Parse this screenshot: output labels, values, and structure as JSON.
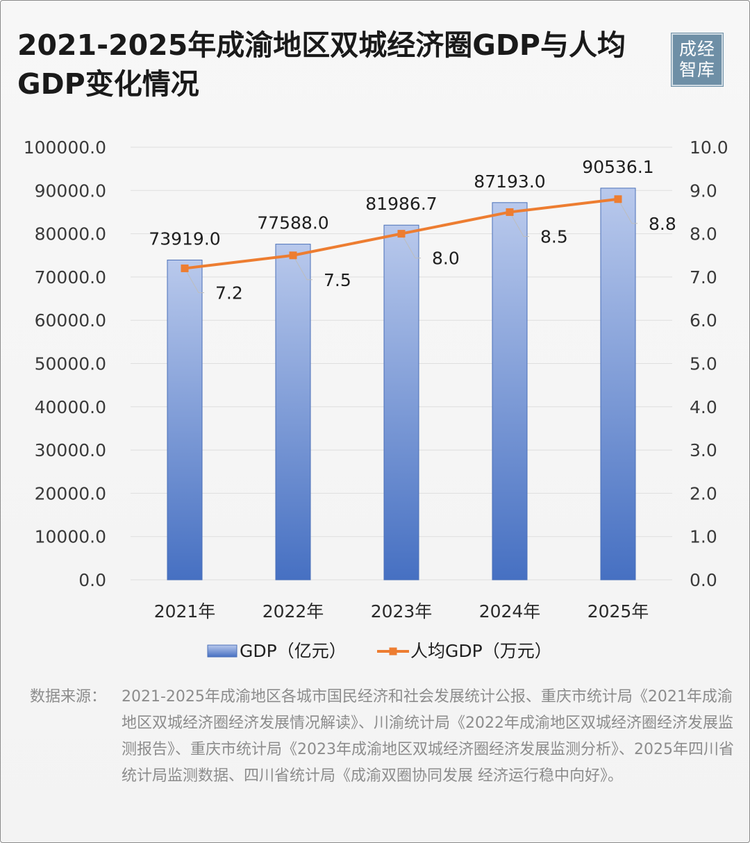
{
  "title": "2021-2025年成渝地区双城经济圈GDP与人均GDP变化情况",
  "logo": {
    "line1": "成经",
    "line2": "智库"
  },
  "source": {
    "label": "数据来源：",
    "text": "2021-2025年成渝地区各城市国民经济和社会发展统计公报、重庆市统计局《2021年成渝地区双城经济圈经济发展情况解读》、川渝统计局《2022年成渝地区双城经济圈经济发展监测报告》、重庆市统计局《2023年成渝地区双城经济圈经济发展监测分析》、2025年四川省统计局监测数据、四川省统计局《成渝双圈协同发展 经济运行稳中向好》。"
  },
  "chart_data": {
    "type": "bar",
    "categories": [
      "2021年",
      "2022年",
      "2023年",
      "2024年",
      "2025年"
    ],
    "series": [
      {
        "name": "GDP（亿元）",
        "type": "bar",
        "axis": "left",
        "values": [
          73919.0,
          77588.0,
          81986.7,
          87193.0,
          90536.1
        ],
        "labels": [
          "73919.0",
          "77588.0",
          "81986.7",
          "87193.0",
          "90536.1"
        ],
        "color": "#4a72c4"
      },
      {
        "name": "人均GDP（万元）",
        "type": "line",
        "axis": "right",
        "values": [
          7.2,
          7.5,
          8.0,
          8.5,
          8.8
        ],
        "labels": [
          "7.2",
          "7.5",
          "8.0",
          "8.5",
          "8.8"
        ],
        "color": "#ed7d31"
      }
    ],
    "y_left": {
      "ylim": [
        0,
        100000
      ],
      "ticks": [
        "0.0",
        "10000.0",
        "20000.0",
        "30000.0",
        "40000.0",
        "50000.0",
        "60000.0",
        "70000.0",
        "80000.0",
        "90000.0",
        "100000.0"
      ]
    },
    "y_right": {
      "ylim": [
        0,
        10
      ],
      "ticks": [
        "0.0",
        "1.0",
        "2.0",
        "3.0",
        "4.0",
        "5.0",
        "6.0",
        "7.0",
        "8.0",
        "9.0",
        "10.0"
      ]
    },
    "grid": true,
    "legend_position": "bottom"
  }
}
